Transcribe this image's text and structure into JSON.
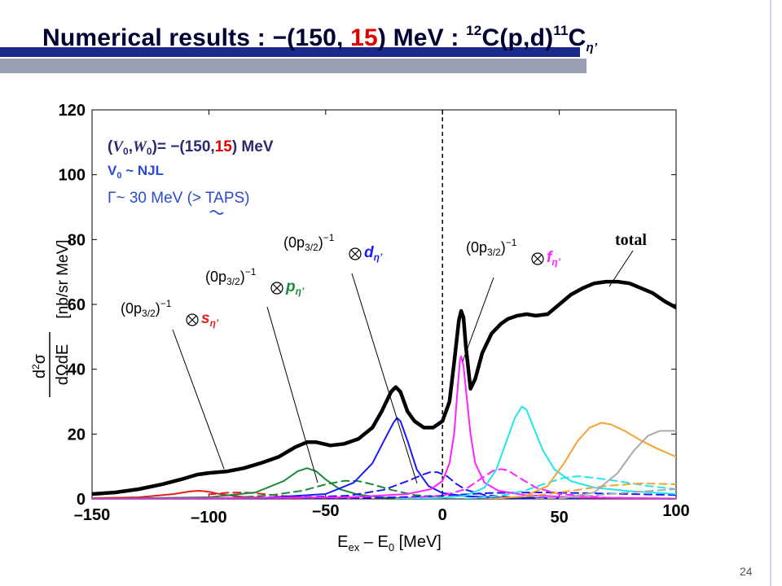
{
  "slide": {
    "title_pre": "Numerical results : ",
    "title_minus": "−(150, ",
    "title_red": "15",
    "title_post": ") MeV : ",
    "title_sup1": "12",
    "title_mid": "C(p,d)",
    "title_sup2": "11",
    "title_end": "C",
    "title_sub": "η’",
    "page_number": "24"
  },
  "annotations": {
    "params_line1": "(V0,W0)= −(150,15) MeV",
    "params_line2": "V0 ~ NJL",
    "params_line3": "Γ~ 30 MeV (> TAPS)",
    "s_label": "(0p3/2)−1 ⊗ sη’",
    "p_label": "(0p3/2)−1 ⊗ pη’",
    "d_label": "(0p3/2)−1 ⊗ dη’",
    "f_label": "(0p3/2)−1 ⊗ fη’",
    "total_label": "total"
  },
  "colors": {
    "title_red": "#e00000",
    "params_blue": "#2a4ad0",
    "s": "#e02020",
    "p": "#1a8a3a",
    "d": "#1a1aff",
    "f": "#ff22ff",
    "cyan": "#22e5ee",
    "orange": "#f6a335",
    "grey": "#aaaaaa",
    "total": "#000000"
  },
  "chart_data": {
    "type": "line",
    "xlabel": "Eex – E0 [MeV]",
    "ylabel": "d2σ/dΩdE [nb/sr MeV]",
    "xlim": [
      -150,
      100
    ],
    "ylim": [
      0,
      120
    ],
    "x_ticks": [
      "–150",
      "–100",
      "–50",
      "0",
      "50",
      "100"
    ],
    "y_ticks": [
      "0",
      "20",
      "40",
      "60",
      "80",
      "100",
      "120"
    ],
    "vertical_dashed_line_x": 0,
    "series": [
      {
        "key": "total",
        "points": [
          [
            -150,
            1.5
          ],
          [
            -140,
            2
          ],
          [
            -130,
            3
          ],
          [
            -120,
            4.5
          ],
          [
            -112,
            6
          ],
          [
            -105,
            7.5
          ],
          [
            -100,
            8
          ],
          [
            -92,
            8.5
          ],
          [
            -85,
            9.5
          ],
          [
            -78,
            11
          ],
          [
            -70,
            13
          ],
          [
            -63,
            16
          ],
          [
            -58,
            17.5
          ],
          [
            -54,
            17.5
          ],
          [
            -48,
            16.5
          ],
          [
            -42,
            17
          ],
          [
            -36,
            18.5
          ],
          [
            -30,
            22
          ],
          [
            -26,
            27
          ],
          [
            -22,
            33
          ],
          [
            -20,
            34.5
          ],
          [
            -18,
            33
          ],
          [
            -15,
            27
          ],
          [
            -12,
            24
          ],
          [
            -8,
            22
          ],
          [
            -4,
            22
          ],
          [
            0,
            24
          ],
          [
            3,
            30
          ],
          [
            5,
            42
          ],
          [
            7,
            55
          ],
          [
            8,
            58
          ],
          [
            9,
            56
          ],
          [
            10,
            47
          ],
          [
            12,
            34
          ],
          [
            14,
            37
          ],
          [
            17,
            45
          ],
          [
            21,
            51
          ],
          [
            25,
            54
          ],
          [
            28,
            55.5
          ],
          [
            32,
            56.5
          ],
          [
            36,
            57
          ],
          [
            40,
            56.5
          ],
          [
            45,
            57
          ],
          [
            50,
            60
          ],
          [
            55,
            63
          ],
          [
            60,
            65
          ],
          [
            65,
            66.5
          ],
          [
            70,
            67
          ],
          [
            75,
            67
          ],
          [
            80,
            66.5
          ],
          [
            85,
            65
          ],
          [
            90,
            63.5
          ],
          [
            95,
            61
          ],
          [
            100,
            59
          ]
        ]
      },
      {
        "key": "s",
        "dash": false,
        "points": [
          [
            -150,
            0.2
          ],
          [
            -130,
            0.5
          ],
          [
            -115,
            1.5
          ],
          [
            -108,
            2.3
          ],
          [
            -104,
            2.5
          ],
          [
            -100,
            2.2
          ],
          [
            -94,
            1.3
          ],
          [
            -85,
            0.6
          ],
          [
            -70,
            0.2
          ],
          [
            -50,
            0.1
          ]
        ]
      },
      {
        "key": "s",
        "dash": true,
        "points": [
          [
            -100,
            1.4
          ],
          [
            -92,
            1.9
          ],
          [
            -85,
            2
          ],
          [
            -78,
            1.6
          ],
          [
            -70,
            1
          ],
          [
            -60,
            0.5
          ],
          [
            -45,
            0.2
          ]
        ]
      },
      {
        "key": "p",
        "dash": false,
        "points": [
          [
            -150,
            0
          ],
          [
            -100,
            0.5
          ],
          [
            -80,
            2
          ],
          [
            -68,
            5.5
          ],
          [
            -62,
            8.5
          ],
          [
            -58,
            9.5
          ],
          [
            -54,
            8.5
          ],
          [
            -50,
            6
          ],
          [
            -44,
            3
          ],
          [
            -36,
            1.3
          ],
          [
            -25,
            0.4
          ],
          [
            -10,
            0.1
          ]
        ]
      },
      {
        "key": "p",
        "dash": true,
        "points": [
          [
            -100,
            0
          ],
          [
            -75,
            1
          ],
          [
            -60,
            2.5
          ],
          [
            -50,
            4.5
          ],
          [
            -42,
            5.6
          ],
          [
            -36,
            5.5
          ],
          [
            -30,
            4.5
          ],
          [
            -22,
            2.8
          ],
          [
            -12,
            1.2
          ],
          [
            0,
            0.4
          ]
        ]
      },
      {
        "key": "d",
        "dash": false,
        "points": [
          [
            -150,
            0
          ],
          [
            -80,
            0.2
          ],
          [
            -50,
            1.5
          ],
          [
            -38,
            5
          ],
          [
            -30,
            11
          ],
          [
            -25,
            18
          ],
          [
            -21,
            23.5
          ],
          [
            -19.5,
            25
          ],
          [
            -18,
            24
          ],
          [
            -15,
            18
          ],
          [
            -11,
            9
          ],
          [
            -6,
            4
          ],
          [
            0,
            1.8
          ],
          [
            10,
            0.8
          ],
          [
            30,
            0.3
          ],
          [
            60,
            0.1
          ]
        ]
      },
      {
        "key": "d",
        "dash": true,
        "points": [
          [
            -80,
            0
          ],
          [
            -40,
            1
          ],
          [
            -25,
            2.8
          ],
          [
            -15,
            5.5
          ],
          [
            -8,
            7.6
          ],
          [
            -5,
            8.3
          ],
          [
            -2,
            8.2
          ],
          [
            2,
            7
          ],
          [
            6,
            4.6
          ],
          [
            10,
            2.8
          ],
          [
            18,
            1.2
          ],
          [
            30,
            0.5
          ],
          [
            50,
            0.2
          ]
        ]
      },
      {
        "key": "d",
        "dash": true,
        "points": [
          [
            -60,
            0
          ],
          [
            -20,
            0.5
          ],
          [
            0,
            1
          ],
          [
            20,
            1.8
          ],
          [
            40,
            2
          ],
          [
            60,
            1.8
          ],
          [
            80,
            1.5
          ],
          [
            100,
            1.2
          ]
        ]
      },
      {
        "key": "f",
        "dash": false,
        "points": [
          [
            -150,
            0
          ],
          [
            -40,
            0.5
          ],
          [
            -15,
            1.5
          ],
          [
            -5,
            3
          ],
          [
            0,
            5.5
          ],
          [
            3,
            11
          ],
          [
            5,
            20
          ],
          [
            6.5,
            34
          ],
          [
            7.5,
            43
          ],
          [
            8,
            44
          ],
          [
            9,
            41
          ],
          [
            10,
            34
          ],
          [
            12,
            20
          ],
          [
            14,
            11
          ],
          [
            18,
            5
          ],
          [
            24,
            2.5
          ],
          [
            35,
            1.2
          ],
          [
            60,
            0.4
          ],
          [
            100,
            0.1
          ]
        ]
      },
      {
        "key": "f",
        "dash": true,
        "points": [
          [
            -20,
            0
          ],
          [
            0,
            1
          ],
          [
            10,
            3
          ],
          [
            17,
            6.5
          ],
          [
            22,
            8.8
          ],
          [
            25,
            9.2
          ],
          [
            28,
            8.8
          ],
          [
            33,
            6.5
          ],
          [
            40,
            3.5
          ],
          [
            50,
            1.5
          ],
          [
            70,
            0.4
          ],
          [
            100,
            0.1
          ]
        ]
      },
      {
        "key": "cyan",
        "dash": false,
        "points": [
          [
            -20,
            0
          ],
          [
            0,
            0.3
          ],
          [
            10,
            1
          ],
          [
            18,
            3.5
          ],
          [
            23,
            9
          ],
          [
            27,
            17
          ],
          [
            31,
            25
          ],
          [
            34,
            28.5
          ],
          [
            36,
            27.5
          ],
          [
            39,
            22
          ],
          [
            43,
            15
          ],
          [
            48,
            9
          ],
          [
            55,
            5.5
          ],
          [
            65,
            3.5
          ],
          [
            80,
            2.4
          ],
          [
            100,
            1.5
          ]
        ]
      },
      {
        "key": "cyan",
        "dash": true,
        "points": [
          [
            10,
            0
          ],
          [
            25,
            1
          ],
          [
            35,
            2.5
          ],
          [
            45,
            5
          ],
          [
            52,
            6.5
          ],
          [
            58,
            7
          ],
          [
            65,
            6.5
          ],
          [
            75,
            5.5
          ],
          [
            88,
            4
          ],
          [
            100,
            3
          ]
        ]
      },
      {
        "key": "orange",
        "dash": false,
        "points": [
          [
            20,
            0
          ],
          [
            35,
            0.8
          ],
          [
            45,
            4
          ],
          [
            52,
            11
          ],
          [
            58,
            18
          ],
          [
            63,
            22
          ],
          [
            68,
            23.5
          ],
          [
            72,
            23
          ],
          [
            78,
            21
          ],
          [
            85,
            18
          ],
          [
            92,
            15.5
          ],
          [
            100,
            13
          ]
        ]
      },
      {
        "key": "orange",
        "dash": true,
        "points": [
          [
            20,
            0
          ],
          [
            40,
            1
          ],
          [
            55,
            2.5
          ],
          [
            70,
            4
          ],
          [
            85,
            4.8
          ],
          [
            100,
            4.5
          ]
        ]
      },
      {
        "key": "grey",
        "dash": false,
        "points": [
          [
            50,
            0
          ],
          [
            65,
            2
          ],
          [
            75,
            8
          ],
          [
            82,
            15
          ],
          [
            88,
            19.5
          ],
          [
            93,
            21
          ],
          [
            100,
            21
          ]
        ]
      },
      {
        "key": "grey",
        "dash": true,
        "points": [
          [
            40,
            0
          ],
          [
            60,
            0.8
          ],
          [
            80,
            2
          ],
          [
            100,
            3
          ]
        ]
      }
    ]
  }
}
